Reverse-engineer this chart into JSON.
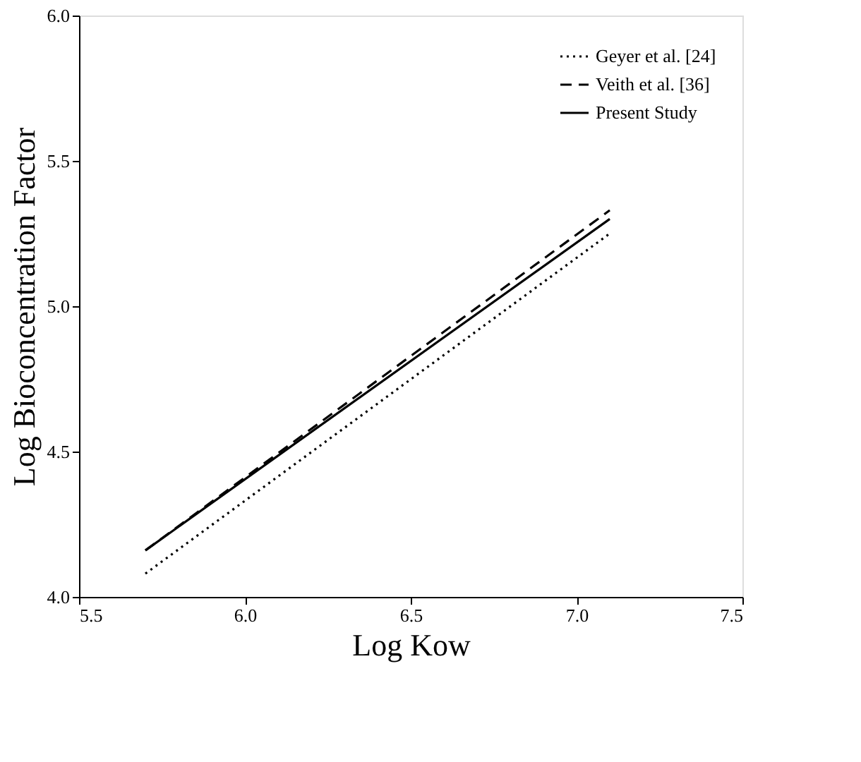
{
  "chart_data": {
    "type": "line",
    "xlabel": "Log Kow",
    "ylabel": "Log Bioconcentration Factor",
    "xlim": [
      5.5,
      7.5
    ],
    "ylim": [
      4.0,
      6.0
    ],
    "xticks": [
      5.5,
      {
        "value": 6,
        "label": "6.0"
      },
      6.5,
      {
        "value": 7,
        "label": "7.0"
      },
      7.5
    ],
    "yticks": [
      {
        "value": 4,
        "label": "4.0"
      },
      4.5,
      {
        "value": 5,
        "label": "5.0"
      },
      5.5,
      {
        "value": 6,
        "label": "6.0"
      }
    ],
    "grid": false,
    "legend": "top right",
    "marker": "none",
    "x": [
      5.7,
      7.1
    ],
    "series": [
      {
        "name": "Geyer et al. [24]",
        "color": "#000000",
        "line_style": "dotted",
        "values": [
          4.08,
          5.25
        ]
      },
      {
        "name": "Veith et al. [36]",
        "color": "#000000",
        "line_style": "dashed",
        "values": [
          4.16,
          5.33
        ]
      },
      {
        "name": "Present Study",
        "color": "#000000",
        "line_style": "solid",
        "values": [
          4.16,
          5.3
        ]
      }
    ]
  }
}
